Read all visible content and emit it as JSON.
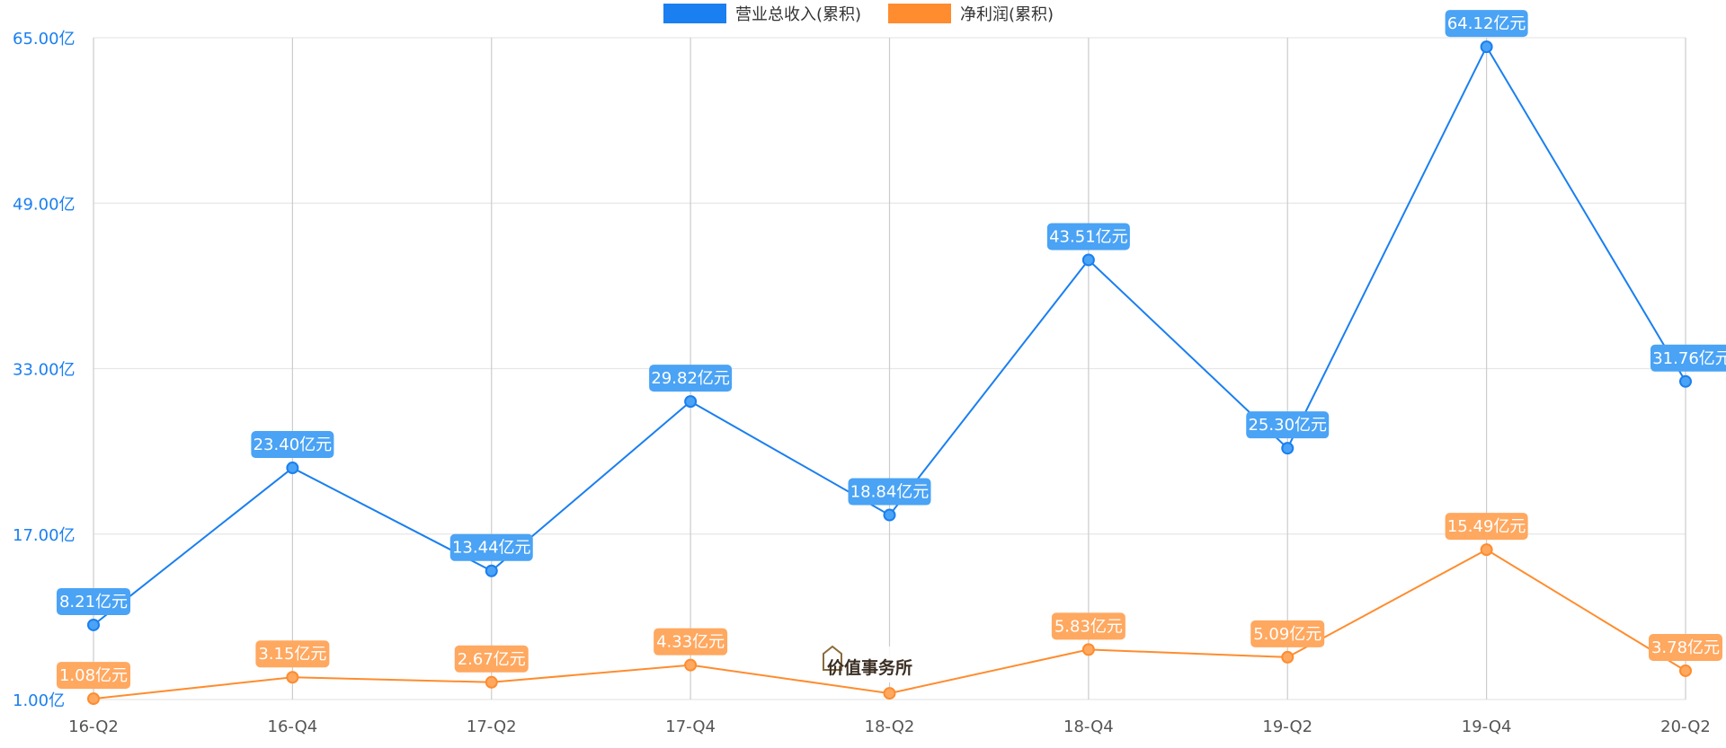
{
  "chart_data": {
    "type": "line",
    "categories": [
      "16-Q2",
      "16-Q4",
      "17-Q2",
      "17-Q4",
      "18-Q2",
      "18-Q4",
      "19-Q2",
      "19-Q4",
      "20-Q2"
    ],
    "series": [
      {
        "name": "营业总收入(累积)",
        "color": "#1a7ff0",
        "label_color": "#4aa3f5",
        "values": [
          8.21,
          23.4,
          13.44,
          29.82,
          18.84,
          43.51,
          25.3,
          64.12,
          31.76
        ],
        "labels": [
          "8.21亿元",
          "23.40亿元",
          "13.44亿元",
          "29.82亿元",
          "18.84亿元",
          "43.51亿元",
          "25.30亿元",
          "64.12亿元",
          "31.76亿元"
        ]
      },
      {
        "name": "净利润(累积)",
        "color": "#ff8c2e",
        "label_color": "#ffa860",
        "values": [
          1.08,
          3.15,
          2.67,
          4.33,
          1.6,
          5.83,
          5.09,
          15.49,
          3.78
        ],
        "labels": [
          "1.08亿元",
          "3.15亿元",
          "2.67亿元",
          "4.33亿元",
          "",
          "5.83亿元",
          "5.09亿元",
          "15.49亿元",
          "3.78亿元"
        ]
      }
    ],
    "yticks": [
      1,
      17,
      33,
      49,
      65
    ],
    "ytick_labels": [
      "1.00亿",
      "17.00亿",
      "33.00亿",
      "49.00亿",
      "65.00亿"
    ],
    "ylim": [
      1,
      65
    ],
    "grid": true,
    "legend_position": "top-center"
  },
  "watermark": {
    "text": "价值事务所"
  }
}
